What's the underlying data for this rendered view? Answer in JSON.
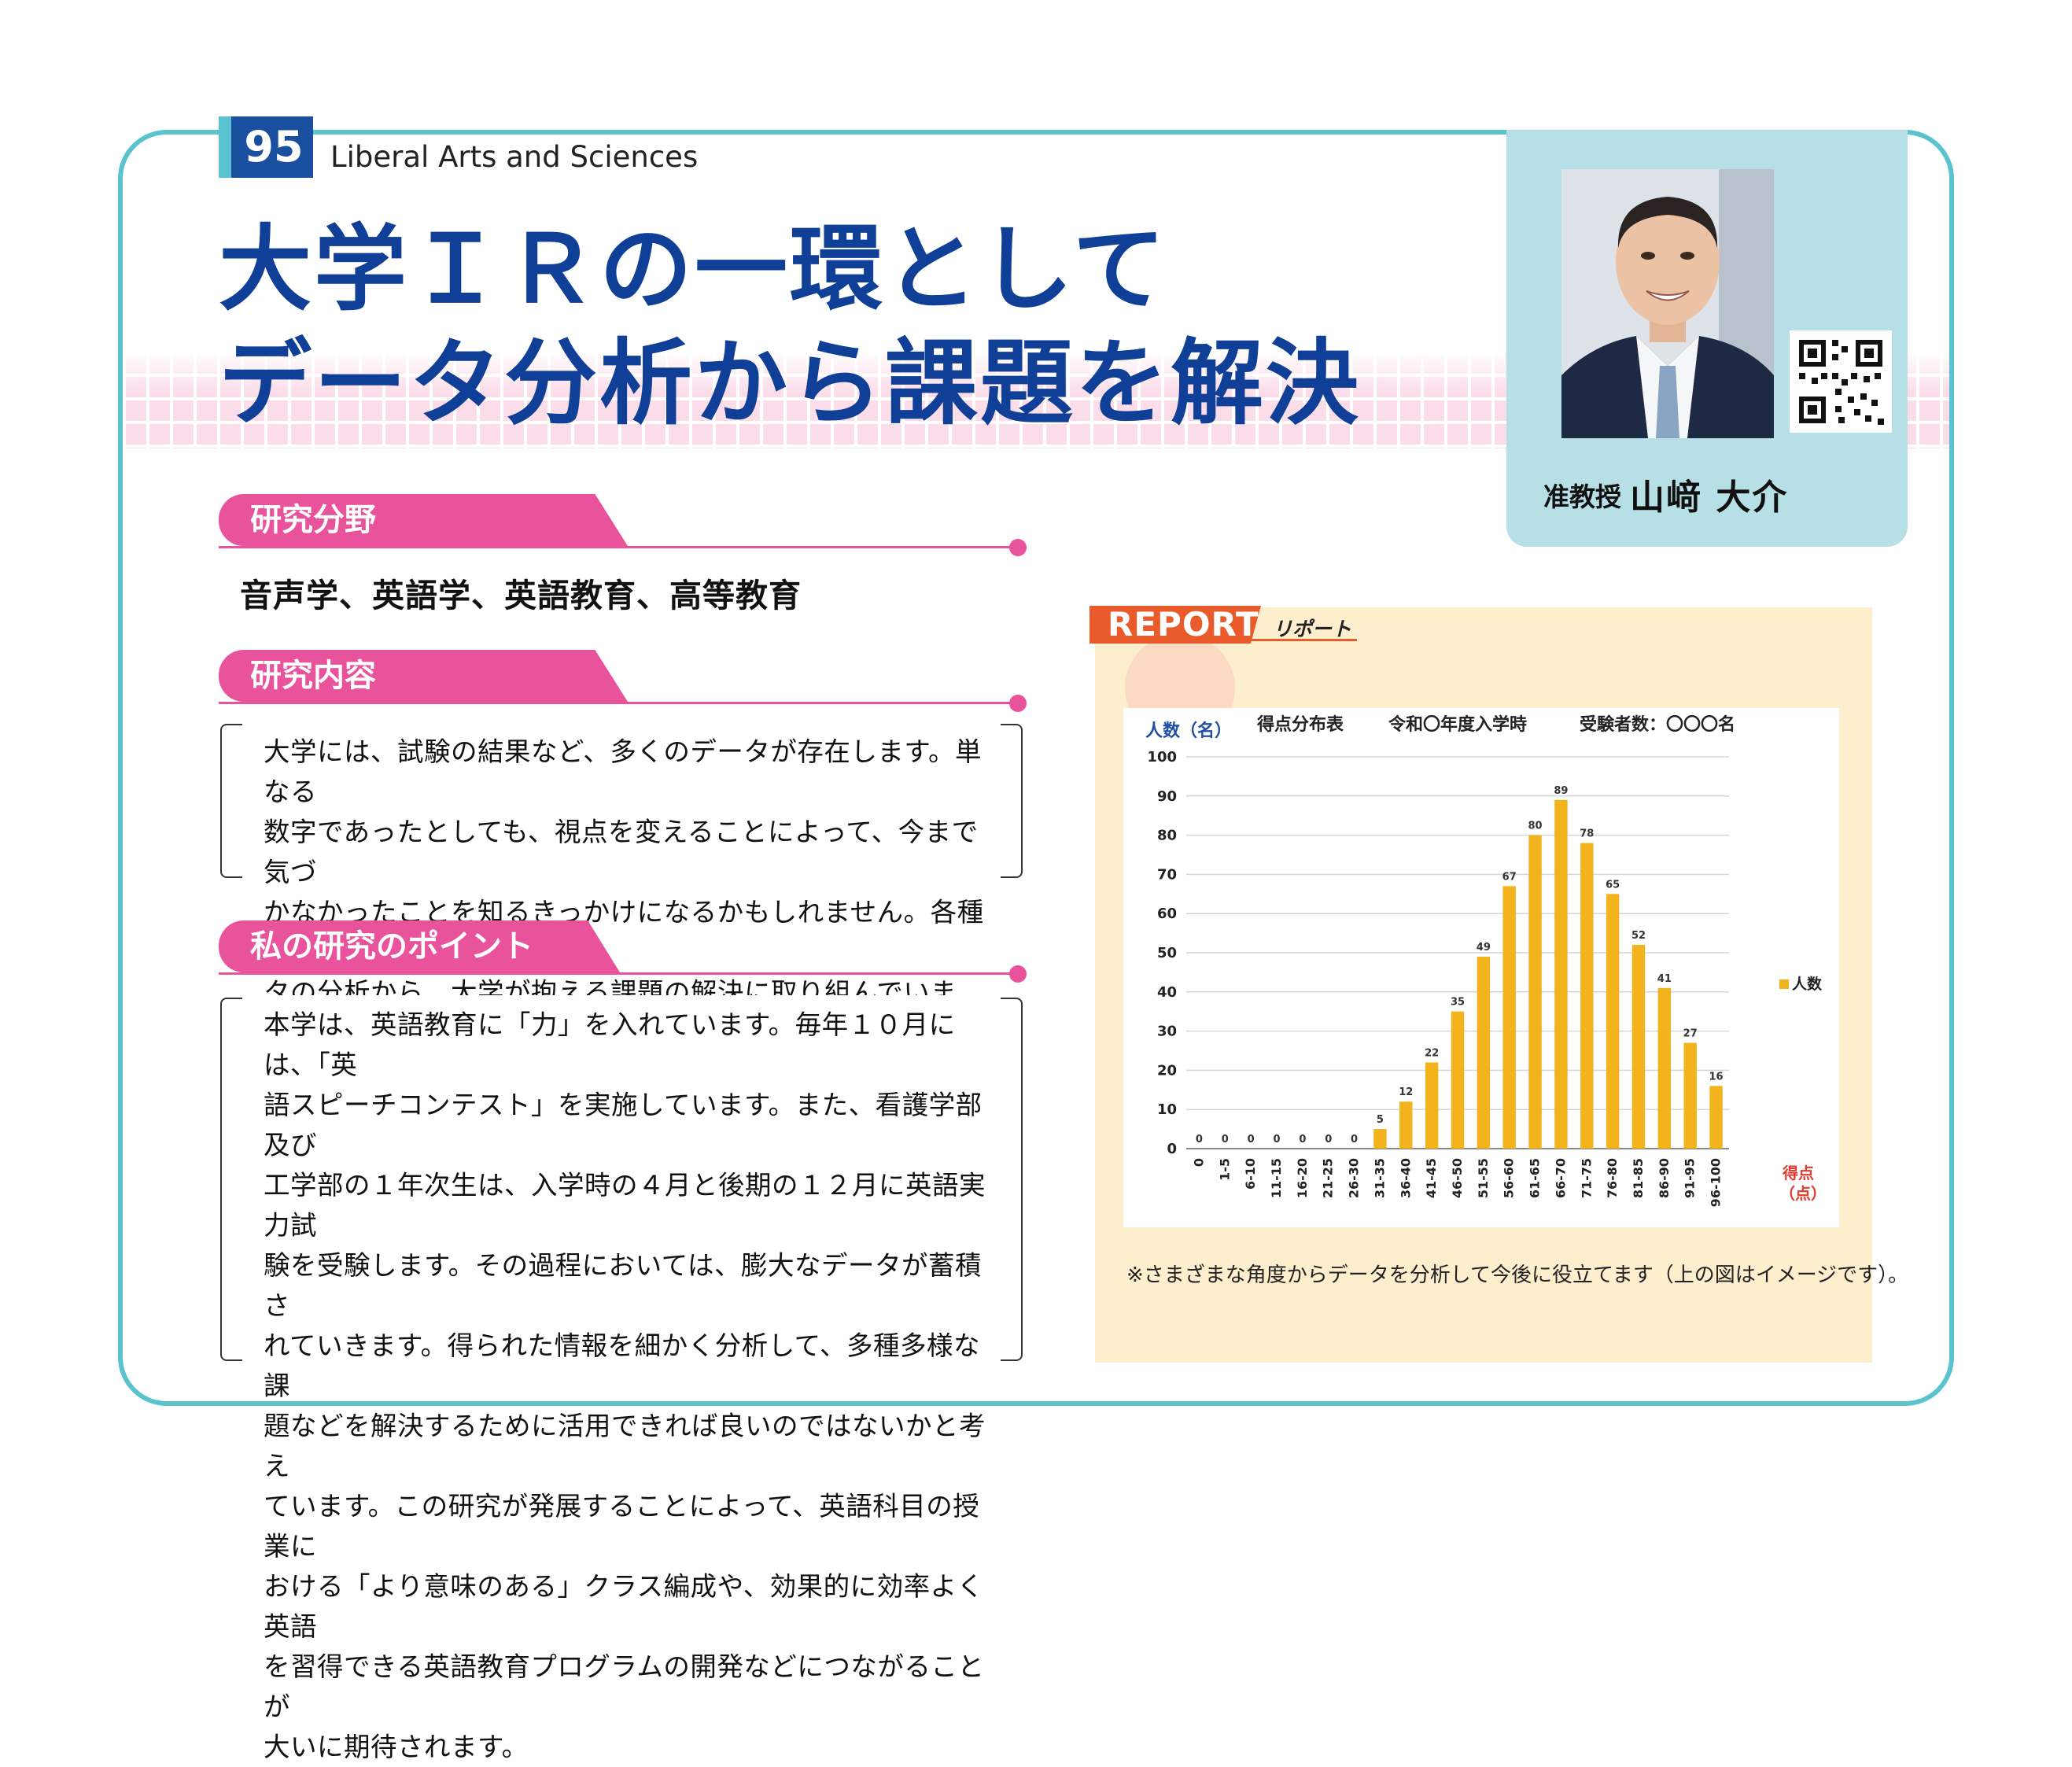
{
  "header": {
    "number": "95",
    "category": "Liberal Arts and Sciences",
    "title_line1": "大学ＩＲの一環として",
    "title_line2": "データ分析から課題を解決"
  },
  "profile": {
    "position": "准教授",
    "name": "山﨑 大介"
  },
  "sections": {
    "field_heading": "研究分野",
    "field_text": "音声学、英語学、英語教育、高等教育",
    "content_heading": "研究内容",
    "content_lines": [
      "大学には、試験の結果など、多くのデータが存在します。単なる",
      "数字であったとしても、視点を変えることによって、今まで気づ",
      "かなかったことを知るきっかけになるかもしれません。各種デー",
      "タの分析から、大学が抱える課題の解決に取り組んでいます。"
    ],
    "point_heading": "私の研究のポイント",
    "point_lines": [
      "本学は、英語教育に「力」を入れています。毎年１０月には、「英",
      "語スピーチコンテスト」を実施しています。また、看護学部及び",
      "工学部の１年次生は、入学時の４月と後期の１２月に英語実力試",
      "験を受験します。その過程においては、膨大なデータが蓄積さ",
      "れていきます。得られた情報を細かく分析して、多種多様な課",
      "題などを解決するために活用できれば良いのではないかと考え",
      "ています。この研究が発展することによって、英語科目の授業に",
      "おける「より意味のある」クラス編成や、効果的に効率よく英語",
      "を習得できる英語教育プログラムの開発などにつながることが",
      "大いに期待されます。"
    ]
  },
  "report": {
    "title": "REPORT",
    "subtitle": "リポート",
    "note": "※さまざまな角度からデータを分析して今後に役立てます（上の図はイメージです）。"
  },
  "chart_data": {
    "type": "bar",
    "title": "得点分布表",
    "subtitle_center": "令和〇年度入学時",
    "subtitle_right": "受験者数：〇〇〇名",
    "ylabel": "人数（名）",
    "xlabel_line1": "得点",
    "xlabel_line2": "（点）",
    "ylim": [
      0,
      100
    ],
    "yticks": [
      0,
      10,
      20,
      30,
      40,
      50,
      60,
      70,
      80,
      90,
      100
    ],
    "categories": [
      "0",
      "1-5",
      "6-10",
      "11-15",
      "16-20",
      "21-25",
      "26-30",
      "31-35",
      "36-40",
      "41-45",
      "46-50",
      "51-55",
      "56-60",
      "61-65",
      "66-70",
      "71-75",
      "76-80",
      "81-85",
      "86-90",
      "91-95",
      "96-100"
    ],
    "series": [
      {
        "name": "人数",
        "values": [
          0,
          0,
          0,
          0,
          0,
          0,
          0,
          5,
          12,
          22,
          35,
          49,
          67,
          80,
          89,
          78,
          65,
          52,
          41,
          27,
          16
        ]
      }
    ],
    "legend_position": "right",
    "colors": {
      "bar": "#f2b31d",
      "axis_label": "#1f4fa3",
      "xlabel": "#e23b2e"
    }
  }
}
